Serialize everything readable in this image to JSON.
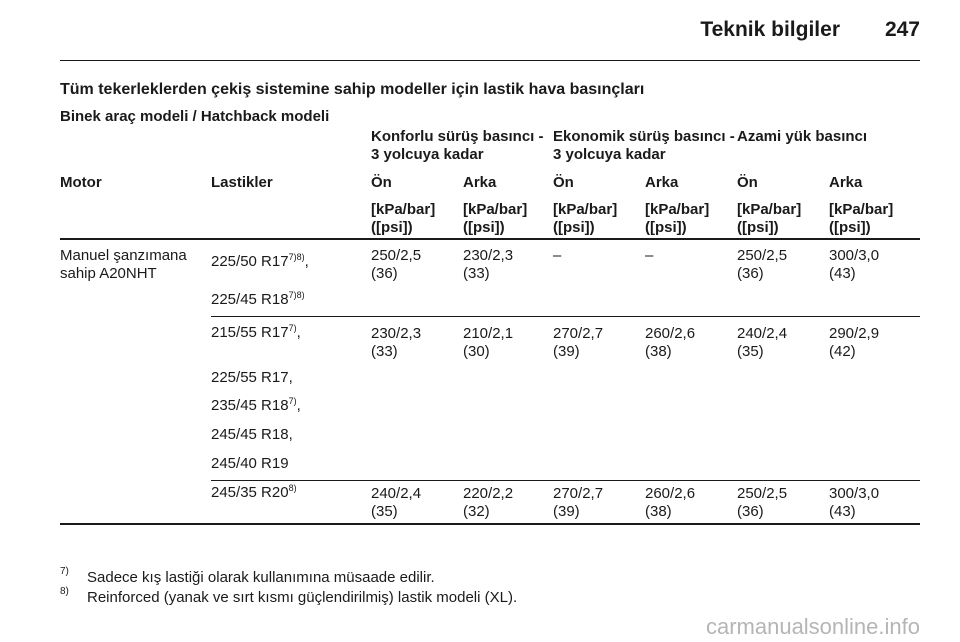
{
  "header": {
    "title": "Teknik bilgiler",
    "page": "247"
  },
  "section_title": "Tüm tekerleklerden çekiş sistemine sahip modeller için lastik hava basınçları",
  "subtitle": "Binek araç modeli / Hatchback modeli",
  "table": {
    "group_headers": [
      [
        "Konforlu sürüş basıncı -",
        "3 yolcuya kadar"
      ],
      [
        "Ekonomik sürüş basıncı -",
        "3 yolcuya kadar"
      ],
      [
        "Azami yük basıncı"
      ]
    ],
    "columns": [
      "Motor",
      "Lastikler",
      "Ön",
      "Arka",
      "Ön",
      "Arka",
      "Ön",
      "Arka"
    ],
    "units": [
      [
        "[kPa/bar]",
        "([psi])"
      ],
      [
        "[kPa/bar]",
        "([psi])"
      ],
      [
        "[kPa/bar]",
        "([psi])"
      ],
      [
        "[kPa/bar]",
        "([psi])"
      ],
      [
        "[kPa/bar]",
        "([psi])"
      ],
      [
        "[kPa/bar]",
        "([psi])"
      ]
    ],
    "motor": [
      "Manuel şanzımana",
      "sahip A20NHT"
    ],
    "groups": [
      {
        "tires": [
          {
            "text": "225/50 R17",
            "sup": "7)8)",
            "suffix": ","
          },
          {
            "text": "225/45 R18",
            "sup": "7)8)"
          }
        ],
        "values": [
          [
            "250/2,5",
            "(36)"
          ],
          [
            "230/2,3",
            "(33)"
          ],
          [
            "–"
          ],
          [
            "–"
          ],
          [
            "250/2,5",
            "(36)"
          ],
          [
            "300/3,0",
            "(43)"
          ]
        ]
      },
      {
        "tires": [
          {
            "text": "215/55 R17",
            "sup": "7)",
            "suffix": ","
          },
          {
            "text": "225/55 R17,"
          },
          {
            "text": "235/45 R18",
            "sup": "7)",
            "suffix": ","
          },
          {
            "text": "245/45 R18,"
          },
          {
            "text": "245/40 R19"
          }
        ],
        "values": [
          [
            "230/2,3",
            "(33)"
          ],
          [
            "210/2,1",
            "(30)"
          ],
          [
            "270/2,7",
            "(39)"
          ],
          [
            "260/2,6",
            "(38)"
          ],
          [
            "240/2,4",
            "(35)"
          ],
          [
            "290/2,9",
            "(42)"
          ]
        ]
      },
      {
        "tires": [
          {
            "text": "245/35 R20",
            "sup": "8)"
          }
        ],
        "values": [
          [
            "240/2,4",
            "(35)"
          ],
          [
            "220/2,2",
            "(32)"
          ],
          [
            "270/2,7",
            "(39)"
          ],
          [
            "260/2,6",
            "(38)"
          ],
          [
            "250/2,5",
            "(36)"
          ],
          [
            "300/3,0",
            "(43)"
          ]
        ]
      }
    ]
  },
  "footnotes": [
    {
      "mark": "7)",
      "text": "Sadece kış lastiği olarak kullanımına müsaade edilir."
    },
    {
      "mark": "8)",
      "text": "Reinforced (yanak ve sırt kısmı güçlendirilmiş) lastik modeli (XL)."
    }
  ],
  "watermark": "carmanualsonline.info"
}
